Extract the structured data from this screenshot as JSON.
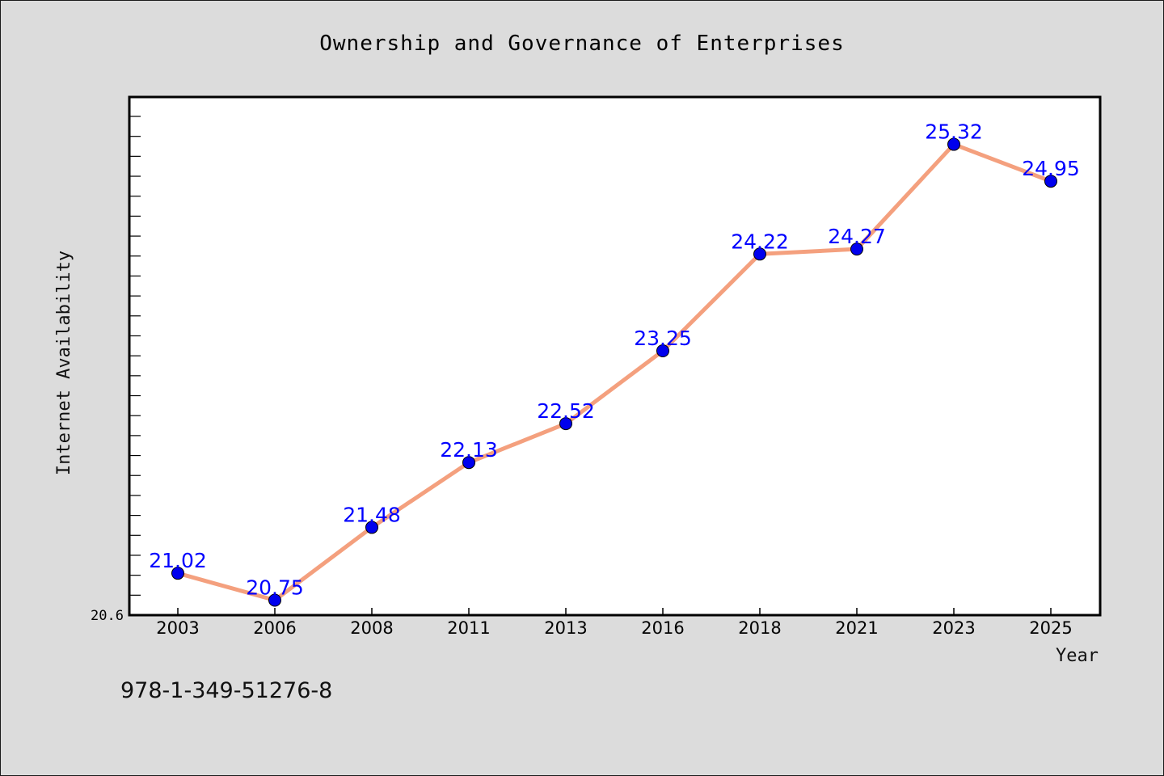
{
  "chart_data": {
    "type": "line",
    "title": "Ownership and Governance of Enterprises",
    "xlabel": "Year",
    "ylabel": "Internet Availability",
    "categories": [
      "2003",
      "2006",
      "2008",
      "2011",
      "2013",
      "2016",
      "2018",
      "2021",
      "2023",
      "2025"
    ],
    "series": [
      {
        "values": [
          21.02,
          20.75,
          21.48,
          22.13,
          22.52,
          23.25,
          24.22,
          24.27,
          25.32,
          24.95
        ],
        "line_color": "#f4a07e",
        "marker_color": "#0000ee",
        "label_color": "#0000ff"
      }
    ],
    "y_tick_labels": [
      "20.6"
    ],
    "ylim": [
      20.6,
      25.8
    ],
    "grid": false,
    "data_labels": true,
    "colors": {
      "background": "#dcdcdc",
      "plot_background": "#ffffff"
    }
  },
  "footer": {
    "isbn": "978-1-349-51276-8"
  }
}
